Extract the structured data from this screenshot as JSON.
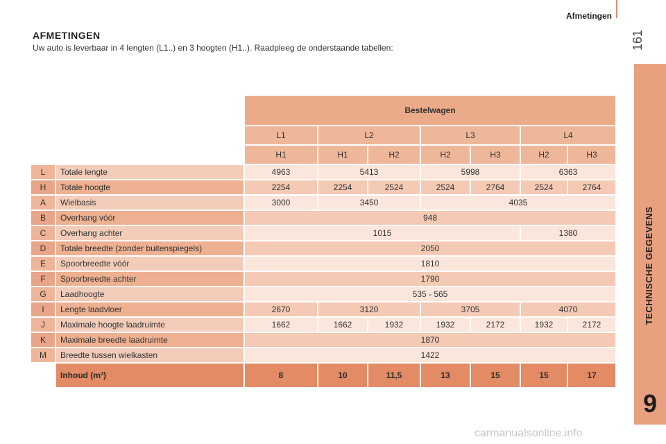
{
  "header": {
    "section_title": "Afmetingen",
    "page_number": "161"
  },
  "sidebar": {
    "label": "TECHNISCHE GEGEVENS",
    "chapter": "9"
  },
  "watermark": "carmanualsonline.info",
  "main": {
    "title": "AFMETINGEN",
    "intro": "Uw auto is leverbaar in 4 lengten (L1..) en 3 hoogten (H1..). Raadpleeg de onderstaande tabellen:"
  },
  "table": {
    "group_header": "Bestelwagen",
    "lengths": [
      "L1",
      "L2",
      "L3",
      "L4"
    ],
    "heights": [
      "H1",
      "H1",
      "H2",
      "H2",
      "H3",
      "H2",
      "H3"
    ],
    "rows": [
      {
        "code": "L",
        "name": "Totale lengte",
        "values": [
          "4963",
          "5413",
          "5998",
          "6363"
        ]
      },
      {
        "code": "H",
        "name": "Totale hoogte",
        "values": [
          "2254",
          "2254",
          "2524",
          "2524",
          "2764",
          "2524",
          "2764"
        ]
      },
      {
        "code": "A",
        "name": "Wielbasis",
        "values": [
          "3000",
          "3450",
          "4035"
        ]
      },
      {
        "code": "B",
        "name": "Overhang vóór",
        "values": [
          "948"
        ]
      },
      {
        "code": "C",
        "name": "Overhang achter",
        "values": [
          "1015",
          "1380"
        ]
      },
      {
        "code": "D",
        "name": "Totale breedte (zonder buitenspiegels)",
        "values": [
          "2050"
        ]
      },
      {
        "code": "E",
        "name": "Spoorbreedte vóór",
        "values": [
          "1810"
        ]
      },
      {
        "code": "F",
        "name": "Spoorbreedte achter",
        "values": [
          "1790"
        ]
      },
      {
        "code": "G",
        "name": "Laadhoogte",
        "values": [
          "535 - 565"
        ]
      },
      {
        "code": "I",
        "name": "Lengte laadvloer",
        "values": [
          "2670",
          "3120",
          "3705",
          "4070"
        ]
      },
      {
        "code": "J",
        "name": "Maximale hoogte laadruimte",
        "values": [
          "1662",
          "1662",
          "1932",
          "1932",
          "2172",
          "1932",
          "2172"
        ]
      },
      {
        "code": "K",
        "name": "Maximale breedte laadruimte",
        "values": [
          "1870"
        ]
      },
      {
        "code": "M",
        "name": "Breedte tussen wielkasten",
        "values": [
          "1422"
        ]
      }
    ],
    "total": {
      "name": "Inhoud (m³)",
      "values": [
        "8",
        "10",
        "11,5",
        "13",
        "15",
        "15",
        "17"
      ]
    }
  }
}
